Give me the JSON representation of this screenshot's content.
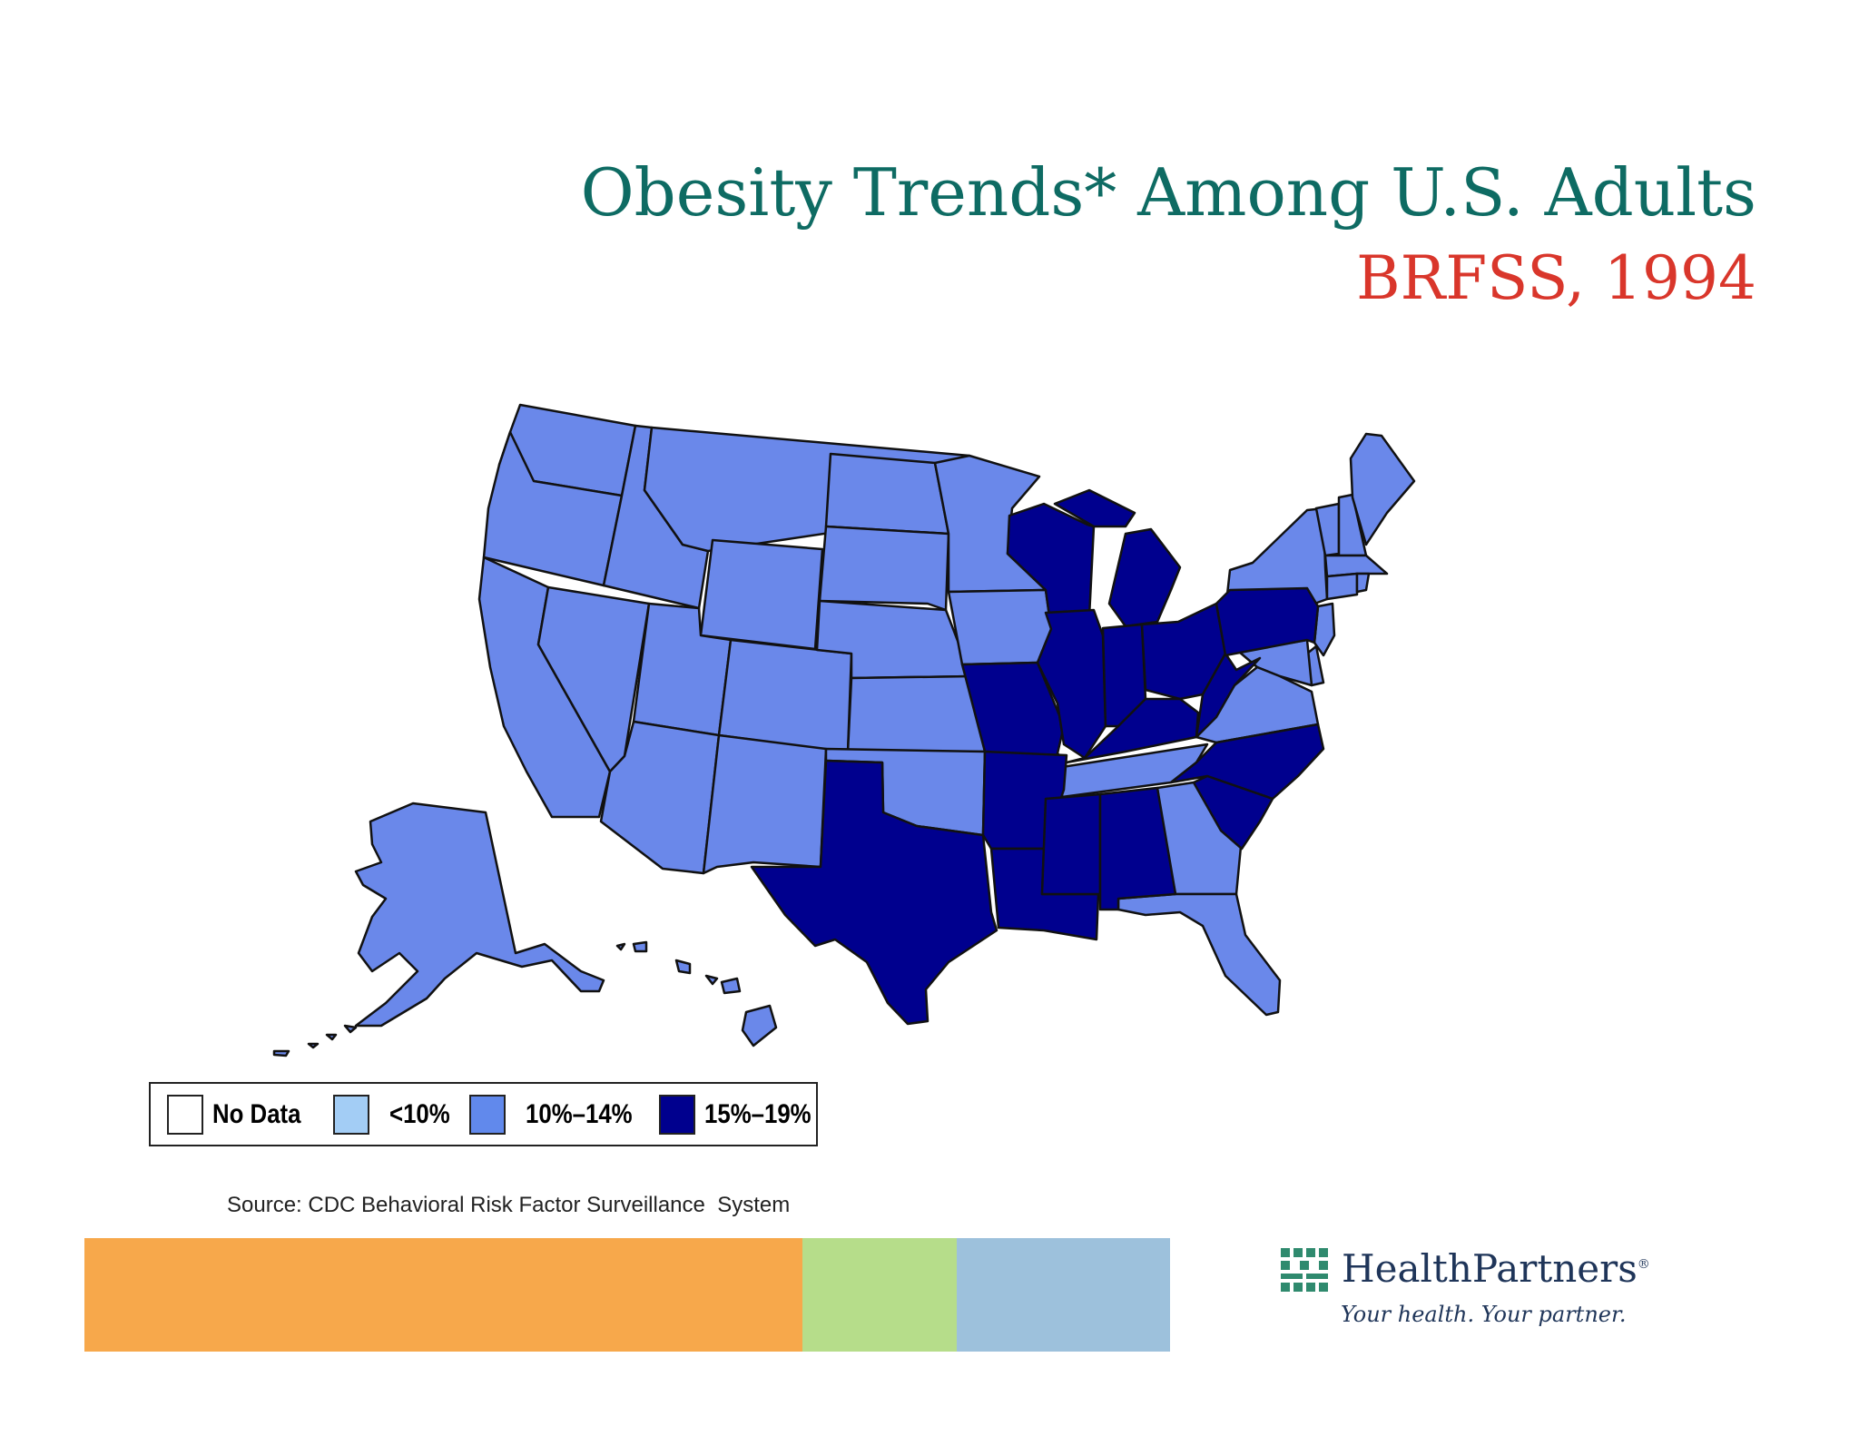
{
  "title": "Obesity Trends* Among U.S. Adults",
  "subtitle": "BRFSS, 1994",
  "legend": [
    {
      "label": "No Data",
      "color": "#ffffff"
    },
    {
      "label": "<10%",
      "color": "#a3cdf5"
    },
    {
      "label": "10%–14%",
      "color": "#6189ec"
    },
    {
      "label": "15%–19%",
      "color": "#00008e"
    }
  ],
  "source": "Source: CDC Behavioral Risk Factor Surveillance  System",
  "colors": {
    "title": "#0e6b63",
    "subtitle": "#d9362b",
    "mid_category": "#6a88ea",
    "high_category": "#00008e",
    "footer_orange": "#f7a84b",
    "footer_green": "#b6dd8a",
    "footer_blue": "#9dc1dc"
  },
  "map_data": {
    "states_10_14": [
      "WA",
      "OR",
      "CA",
      "ID",
      "NV",
      "MT",
      "WY",
      "UT",
      "AZ",
      "CO",
      "NM",
      "ND",
      "SD",
      "NE",
      "KS",
      "OK",
      "MN",
      "IA",
      "NY",
      "ME",
      "VT",
      "NH",
      "MA",
      "CT",
      "RI",
      "NJ",
      "DE",
      "MD",
      "VA",
      "TN",
      "GA",
      "FL",
      "AK",
      "HI"
    ],
    "states_15_19": [
      "TX",
      "MO",
      "AR",
      "LA",
      "MS",
      "AL",
      "WI",
      "MI",
      "IL",
      "IN",
      "KY",
      "OH",
      "WV",
      "PA",
      "NC",
      "SC"
    ]
  },
  "footer_bar": [
    {
      "color": "#f7a84b"
    },
    {
      "color": "#b6dd8a"
    },
    {
      "color": "#9dc1dc"
    }
  ],
  "logo": {
    "name": "HealthPartners",
    "mark": "®",
    "tagline": "Your health. Your partner."
  }
}
